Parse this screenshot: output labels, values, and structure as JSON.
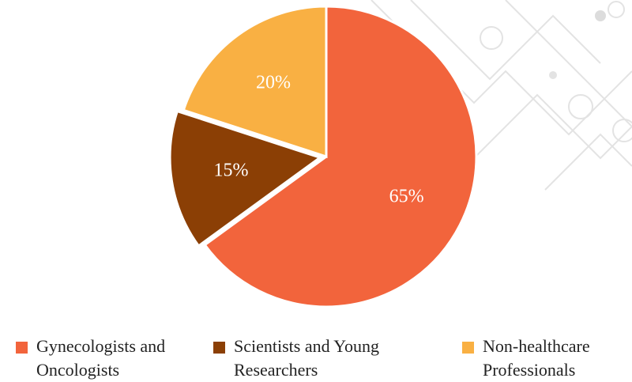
{
  "chart_data": {
    "type": "pie",
    "categories": [
      "Gynecologists and Oncologists",
      "Scientists and Young Researchers",
      "Non-healthcare Professionals"
    ],
    "values": [
      65,
      15,
      20
    ],
    "value_labels": [
      "65%",
      "15%",
      "20%"
    ],
    "colors": [
      "#f2643c",
      "#8b3f05",
      "#f9b043"
    ],
    "legend": "bottom"
  }
}
